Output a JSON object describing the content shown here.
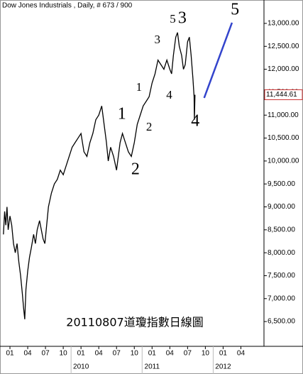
{
  "chart_data": {
    "type": "line",
    "title": "Dow Jones Industrials , Daily, # 673 / 900",
    "caption": "20110807道瓊指數日線圖",
    "xlim": [
      -1.68,
      42.9
    ],
    "ylim": [
      5960,
      13510
    ],
    "xticks": [
      {
        "value": 0,
        "label": "01"
      },
      {
        "value": 3,
        "label": "04"
      },
      {
        "value": 6,
        "label": "07"
      },
      {
        "value": 9,
        "label": "10"
      },
      {
        "value": 12,
        "label": "01"
      },
      {
        "value": 15,
        "label": "04"
      },
      {
        "value": 18,
        "label": "07"
      },
      {
        "value": 21,
        "label": "10"
      },
      {
        "value": 24,
        "label": "01"
      },
      {
        "value": 27,
        "label": "04"
      },
      {
        "value": 30,
        "label": "07"
      },
      {
        "value": 33,
        "label": "10"
      },
      {
        "value": 36,
        "label": "01"
      },
      {
        "value": 39,
        "label": "04"
      }
    ],
    "year_labels": [
      {
        "value": 12,
        "label": "2010"
      },
      {
        "value": 24,
        "label": "2011"
      },
      {
        "value": 36,
        "label": "2012"
      }
    ],
    "yticks": [
      {
        "value": 6500,
        "label": "6,500.00"
      },
      {
        "value": 7000,
        "label": "7,000.00"
      },
      {
        "value": 7500,
        "label": "7,500.00"
      },
      {
        "value": 8000,
        "label": "8,000.00"
      },
      {
        "value": 8500,
        "label": "8,500.00"
      },
      {
        "value": 9000,
        "label": "9,000.00"
      },
      {
        "value": 9500,
        "label": "9,500.00"
      },
      {
        "value": 10000,
        "label": "10,000.00"
      },
      {
        "value": 10500,
        "label": "10,500.00"
      },
      {
        "value": 11000,
        "label": "11,000.00"
      },
      {
        "value": 11500,
        "label": "11,500.00"
      },
      {
        "value": 12000,
        "label": "12,000.00"
      },
      {
        "value": 12500,
        "label": "12,500.00"
      },
      {
        "value": 13000,
        "label": "13,000.00"
      }
    ],
    "last_price": {
      "value": 11444.61,
      "label": "11,444.61"
    },
    "series": [
      {
        "color": "#000000",
        "x": [
          -1.1,
          -0.9,
          -0.7,
          -0.5,
          -0.3,
          0,
          0.3,
          0.6,
          0.9,
          1.2,
          1.5,
          1.8,
          2.1,
          2.3,
          2.5,
          2.7,
          3.0,
          3.3,
          3.6,
          4.0,
          4.3,
          4.6,
          5.0,
          5.3,
          5.6,
          5.9,
          6.2,
          6.5,
          7.0,
          7.5,
          8.0,
          8.5,
          9.0,
          9.5,
          10.0,
          10.5,
          11.0,
          11.5,
          12.0,
          12.5,
          13.0,
          13.5,
          14.0,
          14.5,
          15.0,
          15.5,
          16.0,
          16.3,
          16.6,
          17.0,
          17.5,
          18.0,
          18.3,
          18.6,
          19.0,
          19.5,
          20.0,
          20.5,
          21.0,
          21.5,
          22.0,
          22.5,
          23.0,
          23.5,
          24.0,
          24.5,
          25.0,
          25.5,
          26.0,
          26.5,
          27.0,
          27.3,
          27.6,
          28.0,
          28.3,
          28.6,
          29.0,
          29.3,
          29.6,
          30.0,
          30.3,
          30.6,
          30.9,
          31.1,
          31.15,
          31.25
        ],
        "values": [
          8400,
          8900,
          8600,
          9000,
          8500,
          8800,
          8600,
          8200,
          8000,
          8200,
          7800,
          7500,
          7100,
          6800,
          6550,
          7200,
          7600,
          7900,
          8100,
          8400,
          8200,
          8500,
          8700,
          8500,
          8300,
          8200,
          8600,
          9000,
          9300,
          9500,
          9600,
          9800,
          9700,
          9900,
          10100,
          10300,
          10400,
          10500,
          10600,
          10200,
          10100,
          10400,
          10600,
          10900,
          11000,
          11200,
          10700,
          10400,
          10000,
          10300,
          10100,
          9800,
          10100,
          10400,
          10600,
          10400,
          10200,
          10100,
          10400,
          10800,
          11000,
          11200,
          11300,
          11400,
          11700,
          11900,
          12200,
          12100,
          12000,
          12200,
          12000,
          11900,
          12300,
          12700,
          12800,
          12500,
          12300,
          12000,
          12100,
          12600,
          12700,
          12300,
          11800,
          11400,
          10900,
          11444.61
        ]
      }
    ],
    "trendline": {
      "color": "#3344cc",
      "x": [
        32.8,
        37.5
      ],
      "values": [
        11375,
        13015
      ]
    },
    "annotations": [
      {
        "text": "1",
        "x": 18.9,
        "y": 11003,
        "color": "#3344cc"
      },
      {
        "text": "2",
        "x": 21.2,
        "y": 9796,
        "color": "#3344cc"
      },
      {
        "text": "1",
        "x": 21.8,
        "y": 11591,
        "color": "#dd3333"
      },
      {
        "text": "2",
        "x": 23.5,
        "y": 10725,
        "color": "#dd3333"
      },
      {
        "text": "3",
        "x": 24.9,
        "y": 12628,
        "color": "#dd3333"
      },
      {
        "text": "4",
        "x": 26.9,
        "y": 11421,
        "color": "#dd3333"
      },
      {
        "text": "5",
        "x": 27.5,
        "y": 13077,
        "color": "#dd3333"
      },
      {
        "text": "3",
        "x": 29.1,
        "y": 13093,
        "color": "#3344cc"
      },
      {
        "text": "4",
        "x": 31.3,
        "y": 10848,
        "color": "#3344cc"
      },
      {
        "text": "5",
        "x": 38.0,
        "y": 13279,
        "color": "#3344cc"
      }
    ]
  }
}
